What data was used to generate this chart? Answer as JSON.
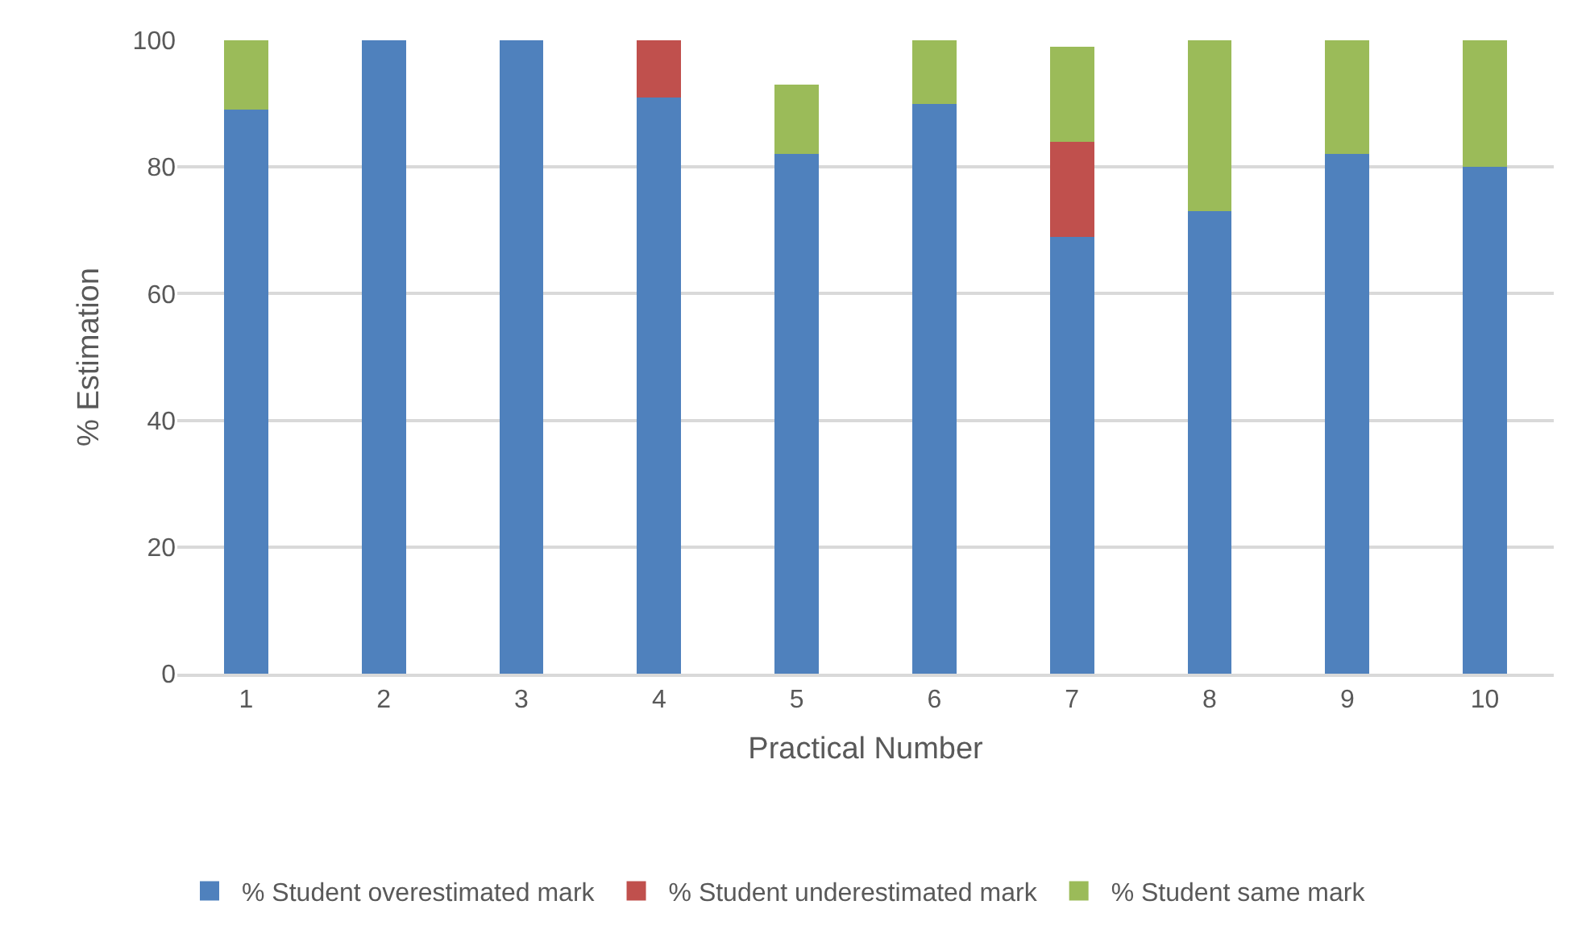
{
  "chart_data": {
    "type": "bar",
    "stacked": true,
    "xlabel": "Practical Number",
    "ylabel": "% Estimation",
    "categories": [
      "1",
      "2",
      "3",
      "4",
      "5",
      "6",
      "7",
      "8",
      "9",
      "10"
    ],
    "series": [
      {
        "name": "% Student overestimated mark",
        "color": "#4f81bd",
        "values": [
          89,
          100,
          100,
          91,
          82,
          90,
          69,
          73,
          82,
          80
        ]
      },
      {
        "name": "% Student underestimated mark",
        "color": "#c0504d",
        "values": [
          null,
          null,
          null,
          9,
          null,
          null,
          15,
          null,
          null,
          null
        ]
      },
      {
        "name": "% Student same mark",
        "color": "#9bbb59",
        "values": [
          11,
          null,
          null,
          null,
          11,
          10,
          15,
          27,
          18,
          20
        ]
      }
    ],
    "ylim": [
      0,
      100
    ],
    "yticks": [
      0,
      20,
      40,
      60,
      80,
      100
    ],
    "grid": "y",
    "legend": "bottom"
  }
}
